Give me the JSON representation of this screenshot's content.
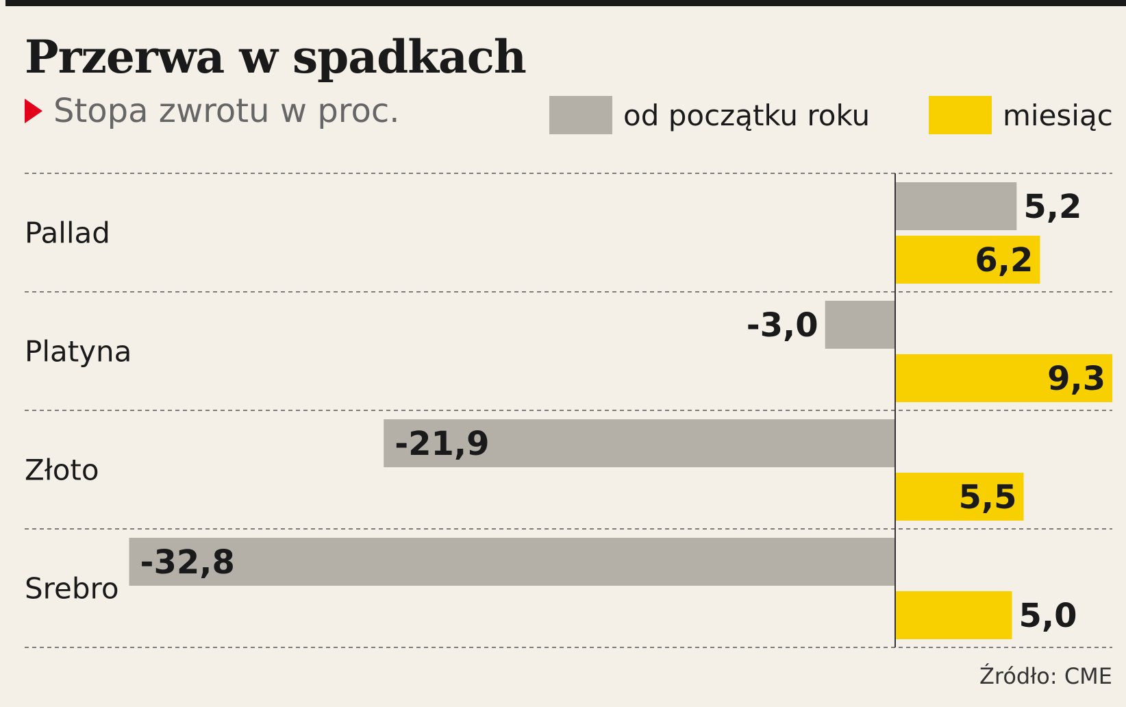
{
  "title": "Przerwa w spadkach",
  "subtitle": "Stopa zwrotu w proc.",
  "source": "Źródło: CME",
  "colors": {
    "ytd": "#b4b0a8",
    "month": "#f8d000",
    "accent": "#e3001b",
    "background": "#f4f0e8"
  },
  "legend": [
    {
      "label": "od początku roku",
      "color": "#b4b0a8"
    },
    {
      "label": "miesiąc",
      "color": "#f8d000"
    }
  ],
  "chart_data": {
    "type": "bar",
    "orientation": "horizontal",
    "categories": [
      "Pallad",
      "Platyna",
      "Złoto",
      "Srebro"
    ],
    "series": [
      {
        "name": "od początku roku",
        "values": [
          5.2,
          -3.0,
          -21.9,
          -32.8
        ],
        "labels": [
          "5,2",
          "-3,0",
          "-21,9",
          "-32,8"
        ]
      },
      {
        "name": "miesiąc",
        "values": [
          6.2,
          9.3,
          5.5,
          5.0
        ],
        "labels": [
          "6,2",
          "9,3",
          "5,5",
          "5,0"
        ]
      }
    ],
    "xlim": [
      -33,
      9.5
    ],
    "grid": "dashed horizontal separators",
    "legend_placement": "top-right",
    "title": "Przerwa w spadkach",
    "subtitle": "Stopa zwrotu w proc."
  }
}
